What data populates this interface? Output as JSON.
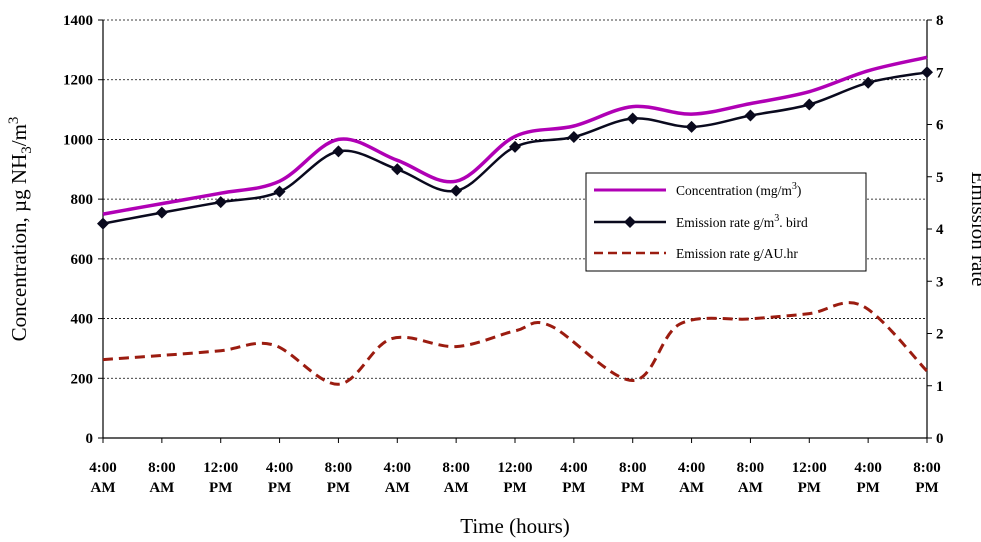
{
  "chart_data": {
    "type": "line",
    "categories": [
      "4:00 AM",
      "8:00 AM",
      "12:00 PM",
      "4:00 PM",
      "8:00 PM",
      "4:00 AM",
      "8:00 AM",
      "12:00 PM",
      "4:00 PM",
      "8:00 PM",
      "4:00 AM",
      "8:00 AM",
      "12:00 PM",
      "4:00 PM",
      "8:00 PM"
    ],
    "category_lines": [
      [
        "4:00",
        "AM"
      ],
      [
        "8:00",
        "AM"
      ],
      [
        "12:00",
        "PM"
      ],
      [
        "4:00",
        "PM"
      ],
      [
        "8:00",
        "PM"
      ],
      [
        "4:00",
        "AM"
      ],
      [
        "8:00",
        "AM"
      ],
      [
        "12:00",
        "PM"
      ],
      [
        "4:00",
        "PM"
      ],
      [
        "8:00",
        "PM"
      ],
      [
        "4:00",
        "AM"
      ],
      [
        "8:00",
        "AM"
      ],
      [
        "12:00",
        "PM"
      ],
      [
        "4:00",
        "PM"
      ],
      [
        "8:00",
        "PM"
      ]
    ],
    "xlabel": "Time (hours)",
    "ylabel_left": "Concentration, µg NH3/m3",
    "ylabel_left_parts": {
      "pre": "Concentration, ",
      "mu": "µ",
      "g": "g NH",
      "sub": "3",
      "mid": "/m",
      "sup": "3"
    },
    "ylabel_right": "Emission rate",
    "ylim_left": [
      0,
      1400
    ],
    "yticks_left": [
      0,
      200,
      400,
      600,
      800,
      1000,
      1200,
      1400
    ],
    "ylim_right": [
      0,
      8
    ],
    "yticks_right": [
      0,
      1,
      2,
      3,
      4,
      5,
      6,
      7,
      8
    ],
    "grid": "horizontal dotted",
    "legend_position": "center-right",
    "series": [
      {
        "name": "Concentration (mg/m3)",
        "label_parts": {
          "pre": "Concentration (mg/m",
          "sup": "3",
          "post": ")"
        },
        "axis": "left",
        "style": "solid",
        "color": "#b000b5",
        "marker": "none",
        "values": [
          750,
          785,
          820,
          860,
          1000,
          930,
          860,
          1010,
          1045,
          1110,
          1085,
          1120,
          1160,
          1230,
          1275
        ]
      },
      {
        "name": "Emission rate g/m3. bird",
        "label_parts": {
          "pre": "Emission rate g/m",
          "sup": "3",
          "post": ". bird"
        },
        "axis": "left",
        "style": "solid",
        "color": "#0a0a1e",
        "marker": "diamond",
        "values": [
          718,
          755,
          790,
          825,
          960,
          900,
          828,
          975,
          1008,
          1070,
          1042,
          1080,
          1117,
          1190,
          1225
        ]
      },
      {
        "name": "Emission rate g/AU.hr",
        "label_parts": {
          "pre": "Emission rate g/AU.hr",
          "sup": "",
          "post": ""
        },
        "axis": "right",
        "style": "dashed",
        "color": "#9b1c10",
        "marker": "none",
        "x": [
          0,
          1,
          2,
          2.9,
          4,
          4.9,
          6,
          7,
          7.6,
          9,
          9.8,
          11,
          12,
          12.9,
          14
        ],
        "values": [
          1.5,
          1.58,
          1.67,
          1.78,
          1.03,
          1.9,
          1.75,
          2.05,
          2.15,
          1.1,
          2.18,
          2.28,
          2.38,
          2.53,
          1.28
        ]
      }
    ]
  }
}
